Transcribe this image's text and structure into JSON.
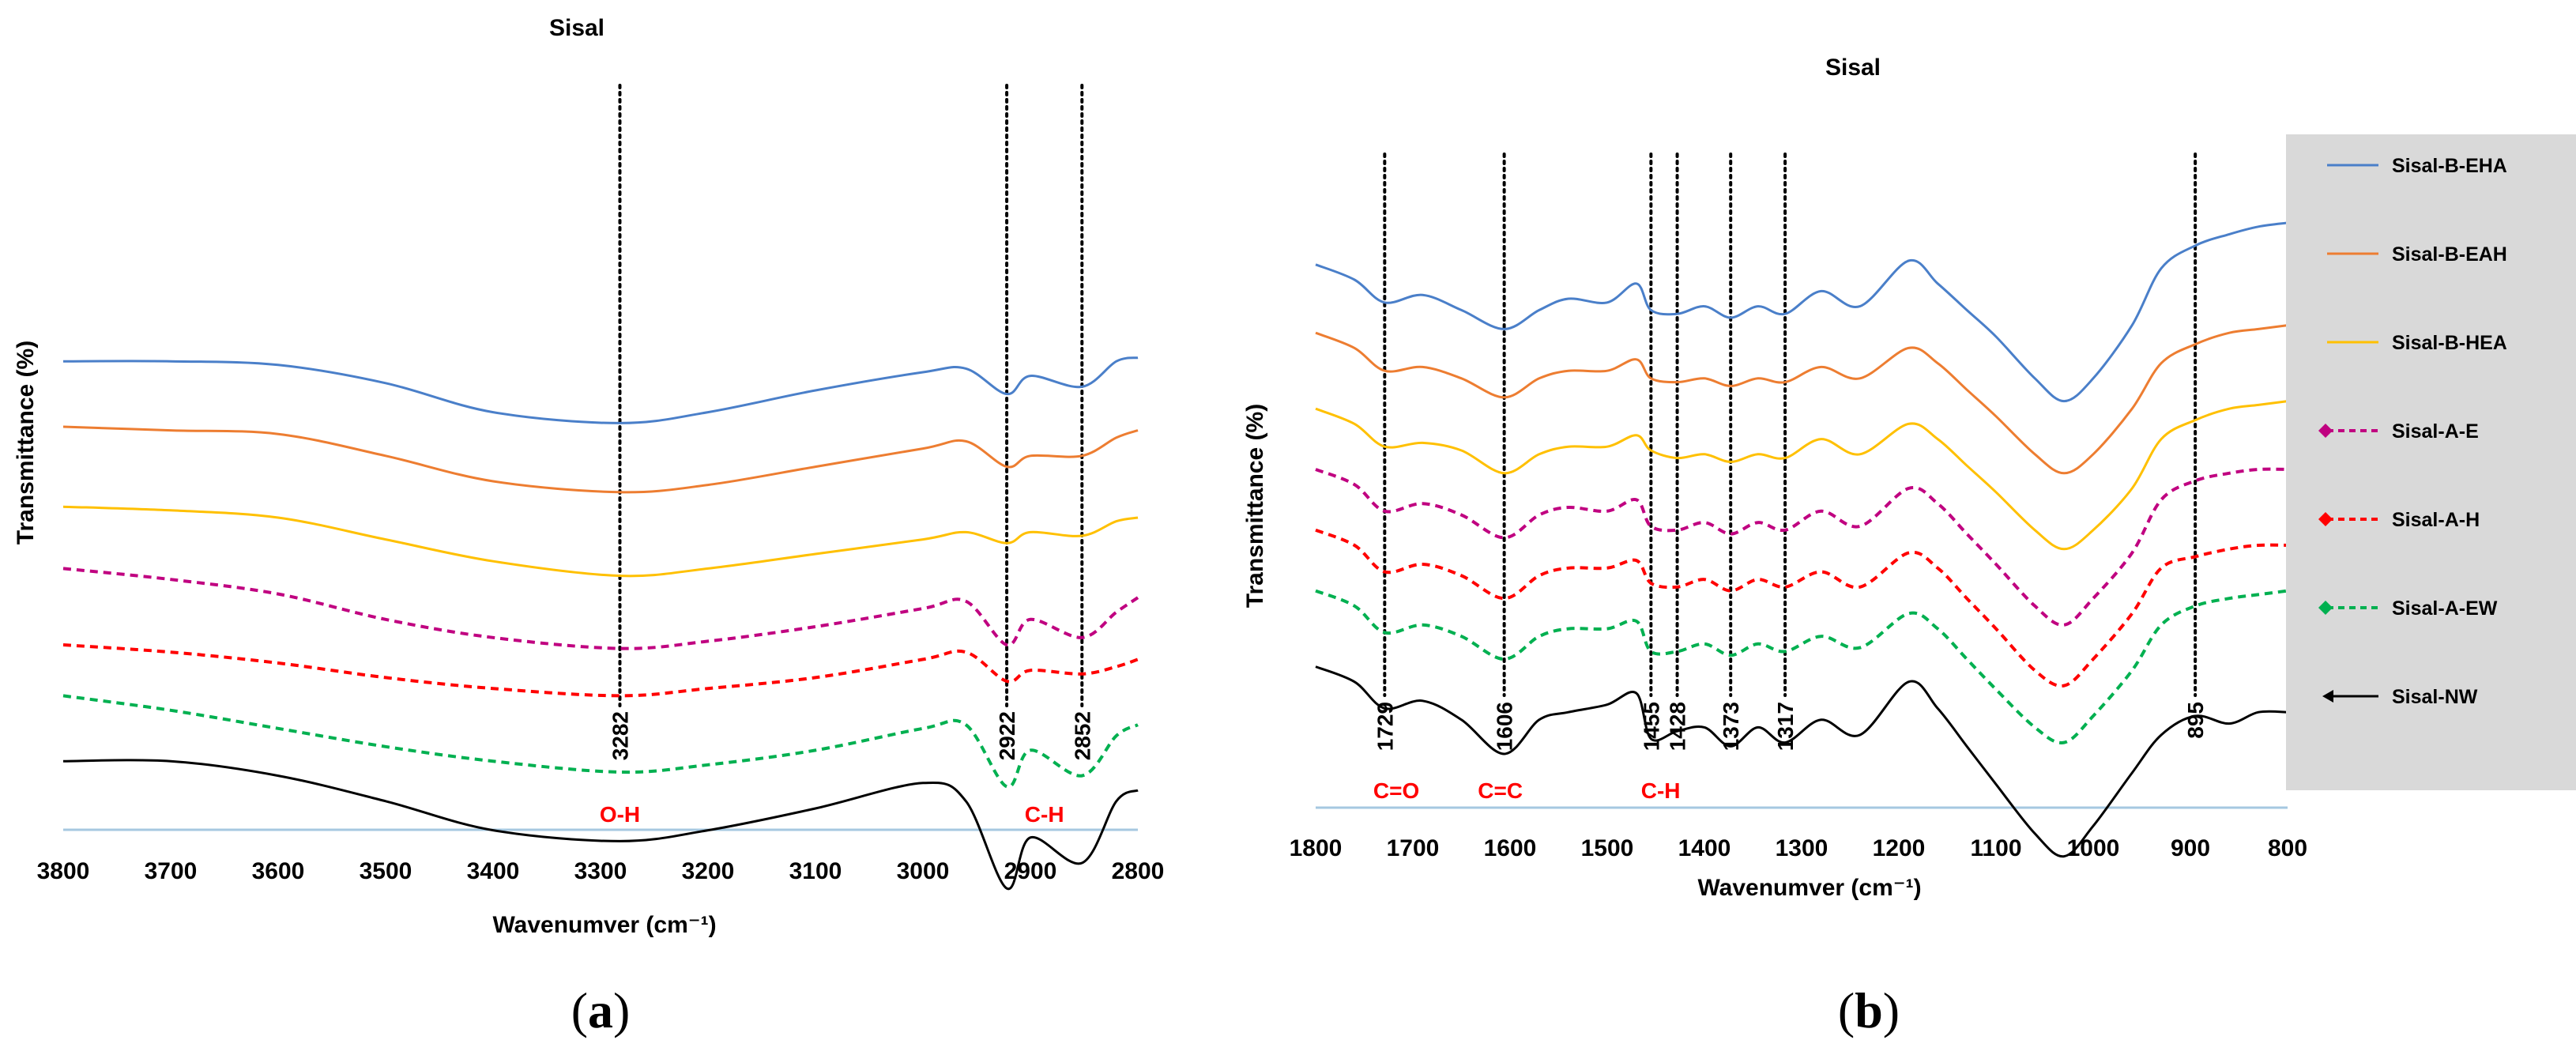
{
  "chart_data": [
    {
      "panel": "a",
      "type": "line",
      "title": "Sisal",
      "xlabel": "Wavenumver (cm⁻¹)",
      "ylabel": "Transmittance (%)",
      "xlim": [
        3800,
        2800
      ],
      "x_ticks": [
        "3800",
        "3700",
        "3600",
        "3500",
        "3400",
        "3300",
        "3200",
        "3100",
        "3000",
        "2900",
        "2800"
      ],
      "peak_markers": [
        {
          "x": 3282,
          "label": "3282"
        },
        {
          "x": 2922,
          "label": "2922"
        },
        {
          "x": 2852,
          "label": "2852"
        }
      ],
      "group_labels": [
        {
          "x": 3282,
          "label": "O-H"
        },
        {
          "x": 2887,
          "label": "C-H"
        }
      ],
      "x": [
        3800,
        3700,
        3600,
        3500,
        3400,
        3282,
        3200,
        3100,
        3000,
        2960,
        2922,
        2900,
        2852,
        2820,
        2800
      ],
      "series": [
        {
          "name": "Sisal-B-EHA",
          "color": "#4a7fc9",
          "dash": "solid",
          "offset": 5.8,
          "values": [
            0.1,
            0.1,
            0.05,
            -0.2,
            -0.6,
            -0.75,
            -0.6,
            -0.3,
            -0.05,
            0.0,
            -0.35,
            -0.1,
            -0.25,
            0.1,
            0.15
          ]
        },
        {
          "name": "Sisal-B-EAH",
          "color": "#ed7d31",
          "dash": "solid",
          "offset": 4.9,
          "values": [
            0.1,
            0.05,
            0.0,
            -0.3,
            -0.65,
            -0.8,
            -0.7,
            -0.45,
            -0.2,
            -0.1,
            -0.45,
            -0.3,
            -0.3,
            -0.05,
            0.05
          ]
        },
        {
          "name": "Sisal-B-HEA",
          "color": "#ffc000",
          "dash": "solid",
          "offset": 3.8,
          "values": [
            0.1,
            0.05,
            -0.05,
            -0.35,
            -0.65,
            -0.85,
            -0.75,
            -0.55,
            -0.35,
            -0.25,
            -0.4,
            -0.25,
            -0.3,
            -0.1,
            -0.05
          ]
        },
        {
          "name": "Sisal-A-E",
          "color": "#c00080",
          "dash": "dashed",
          "offset": 2.9,
          "values": [
            0.15,
            0.0,
            -0.2,
            -0.55,
            -0.8,
            -0.95,
            -0.85,
            -0.65,
            -0.4,
            -0.3,
            -0.9,
            -0.55,
            -0.8,
            -0.45,
            -0.25
          ]
        },
        {
          "name": "Sisal-A-H",
          "color": "#ff0000",
          "dash": "dashed",
          "offset": 2.0,
          "values": [
            0.0,
            -0.1,
            -0.25,
            -0.45,
            -0.6,
            -0.7,
            -0.6,
            -0.45,
            -0.2,
            -0.1,
            -0.5,
            -0.35,
            -0.4,
            -0.3,
            -0.2
          ]
        },
        {
          "name": "Sisal-A-EW",
          "color": "#00b050",
          "dash": "dashed",
          "offset": 1.2,
          "values": [
            0.1,
            -0.1,
            -0.35,
            -0.6,
            -0.8,
            -0.95,
            -0.85,
            -0.65,
            -0.35,
            -0.3,
            -1.15,
            -0.65,
            -1.0,
            -0.45,
            -0.3
          ]
        },
        {
          "name": "Sisal-NW",
          "color": "#000000",
          "dash": "solid",
          "offset": 0.3,
          "values": [
            0.1,
            0.1,
            -0.1,
            -0.45,
            -0.85,
            -1.0,
            -0.85,
            -0.55,
            -0.2,
            -0.45,
            -1.65,
            -0.95,
            -1.3,
            -0.45,
            -0.3
          ]
        }
      ]
    },
    {
      "panel": "b",
      "type": "line",
      "title": "Sisal",
      "xlabel": "Wavenumver (cm⁻¹)",
      "ylabel": "Transmittance (%)",
      "xlim": [
        1800,
        800
      ],
      "x_ticks": [
        "1800",
        "1700",
        "1600",
        "1500",
        "1400",
        "1300",
        "1200",
        "1100",
        "1000",
        "900",
        "800"
      ],
      "peak_markers": [
        {
          "x": 1729,
          "label": "1729"
        },
        {
          "x": 1606,
          "label": "1606"
        },
        {
          "x": 1455,
          "label": "1455"
        },
        {
          "x": 1428,
          "label": "1428"
        },
        {
          "x": 1373,
          "label": "1373"
        },
        {
          "x": 1317,
          "label": "1317"
        },
        {
          "x": 895,
          "label": "895"
        }
      ],
      "group_labels": [
        {
          "x": 1717,
          "label": "C=O"
        },
        {
          "x": 1610,
          "label": "C=C"
        },
        {
          "x": 1445,
          "label": "C-H"
        }
      ],
      "x": [
        1800,
        1760,
        1729,
        1690,
        1650,
        1606,
        1570,
        1540,
        1500,
        1470,
        1455,
        1428,
        1400,
        1373,
        1345,
        1317,
        1280,
        1240,
        1190,
        1160,
        1130,
        1100,
        1060,
        1030,
        1000,
        960,
        930,
        895,
        860,
        830,
        800
      ],
      "series": [
        {
          "name": "Sisal-B-EHA",
          "color": "#4a7fc9",
          "dash": "solid",
          "offset": 6.0,
          "values": [
            0.2,
            0.0,
            -0.3,
            -0.2,
            -0.4,
            -0.65,
            -0.4,
            -0.25,
            -0.3,
            -0.05,
            -0.4,
            -0.45,
            -0.35,
            -0.5,
            -0.35,
            -0.45,
            -0.15,
            -0.35,
            0.25,
            -0.05,
            -0.4,
            -0.75,
            -1.3,
            -1.6,
            -1.3,
            -0.6,
            0.15,
            0.45,
            0.6,
            0.7,
            0.75
          ]
        },
        {
          "name": "Sisal-B-EAH",
          "color": "#ed7d31",
          "dash": "solid",
          "offset": 5.0,
          "values": [
            0.3,
            0.1,
            -0.2,
            -0.15,
            -0.3,
            -0.55,
            -0.3,
            -0.2,
            -0.2,
            -0.05,
            -0.3,
            -0.35,
            -0.3,
            -0.4,
            -0.3,
            -0.35,
            -0.15,
            -0.3,
            0.1,
            -0.1,
            -0.45,
            -0.8,
            -1.3,
            -1.55,
            -1.3,
            -0.7,
            -0.1,
            0.15,
            0.3,
            0.35,
            0.4
          ]
        },
        {
          "name": "Sisal-B-HEA",
          "color": "#ffc000",
          "dash": "solid",
          "offset": 4.0,
          "values": [
            0.3,
            0.1,
            -0.2,
            -0.15,
            -0.25,
            -0.55,
            -0.3,
            -0.2,
            -0.2,
            -0.05,
            -0.25,
            -0.35,
            -0.3,
            -0.4,
            -0.3,
            -0.35,
            -0.1,
            -0.3,
            0.1,
            -0.1,
            -0.45,
            -0.8,
            -1.3,
            -1.55,
            -1.3,
            -0.75,
            -0.1,
            0.15,
            0.3,
            0.35,
            0.4
          ]
        },
        {
          "name": "Sisal-A-E",
          "color": "#c00080",
          "dash": "dashed",
          "offset": 3.2,
          "values": [
            0.3,
            0.1,
            -0.25,
            -0.15,
            -0.3,
            -0.6,
            -0.3,
            -0.2,
            -0.25,
            -0.1,
            -0.45,
            -0.5,
            -0.4,
            -0.55,
            -0.4,
            -0.5,
            -0.25,
            -0.45,
            0.05,
            -0.15,
            -0.55,
            -0.95,
            -1.5,
            -1.75,
            -1.4,
            -0.8,
            -0.1,
            0.15,
            0.25,
            0.3,
            0.3
          ]
        },
        {
          "name": "Sisal-A-H",
          "color": "#ff0000",
          "dash": "dashed",
          "offset": 2.4,
          "values": [
            0.3,
            0.1,
            -0.25,
            -0.15,
            -0.3,
            -0.6,
            -0.3,
            -0.2,
            -0.2,
            -0.1,
            -0.4,
            -0.45,
            -0.35,
            -0.5,
            -0.35,
            -0.45,
            -0.25,
            -0.45,
            0.0,
            -0.2,
            -0.6,
            -1.0,
            -1.55,
            -1.75,
            -1.4,
            -0.8,
            -0.2,
            -0.05,
            0.05,
            0.1,
            0.1
          ]
        },
        {
          "name": "Sisal-A-EW",
          "color": "#00b050",
          "dash": "dashed",
          "offset": 1.6,
          "values": [
            0.3,
            0.1,
            -0.25,
            -0.15,
            -0.3,
            -0.6,
            -0.3,
            -0.2,
            -0.2,
            -0.1,
            -0.5,
            -0.5,
            -0.4,
            -0.55,
            -0.4,
            -0.5,
            -0.3,
            -0.45,
            0.0,
            -0.2,
            -0.6,
            -1.0,
            -1.5,
            -1.7,
            -1.35,
            -0.75,
            -0.15,
            0.1,
            0.2,
            0.25,
            0.3
          ]
        },
        {
          "name": "Sisal-NW",
          "color": "#000000",
          "dash": "solid",
          "offset": 0.6,
          "values": [
            0.3,
            0.1,
            -0.25,
            -0.15,
            -0.4,
            -0.85,
            -0.4,
            -0.3,
            -0.2,
            -0.05,
            -0.65,
            -0.55,
            -0.5,
            -0.75,
            -0.5,
            -0.7,
            -0.4,
            -0.6,
            0.1,
            -0.25,
            -0.75,
            -1.25,
            -1.9,
            -2.2,
            -1.8,
            -1.1,
            -0.6,
            -0.35,
            -0.45,
            -0.3,
            -0.3
          ]
        }
      ],
      "legend": [
        {
          "label": "Sisal-B-EHA",
          "color": "#4a7fc9",
          "dash": "solid",
          "marker": "none"
        },
        {
          "label": "Sisal-B-EAH",
          "color": "#ed7d31",
          "dash": "solid",
          "marker": "none"
        },
        {
          "label": "Sisal-B-HEA",
          "color": "#ffc000",
          "dash": "solid",
          "marker": "none"
        },
        {
          "label": "Sisal-A-E",
          "color": "#c00080",
          "dash": "dashed",
          "marker": "diamond"
        },
        {
          "label": "Sisal-A-H",
          "color": "#ff0000",
          "dash": "dashed",
          "marker": "diamond"
        },
        {
          "label": "Sisal-A-EW",
          "color": "#00b050",
          "dash": "dashed",
          "marker": "diamond"
        },
        {
          "label": "Sisal-NW",
          "color": "#000000",
          "dash": "solid",
          "marker": "arrow"
        }
      ],
      "legend_placement": "right"
    }
  ],
  "captions": [
    "(a)",
    "(b)"
  ],
  "colors": {
    "legend_background": "#d9d9d9",
    "axis_line": "#a6c8e0",
    "peak_line": "#000000",
    "group_label": "#ff0000"
  }
}
